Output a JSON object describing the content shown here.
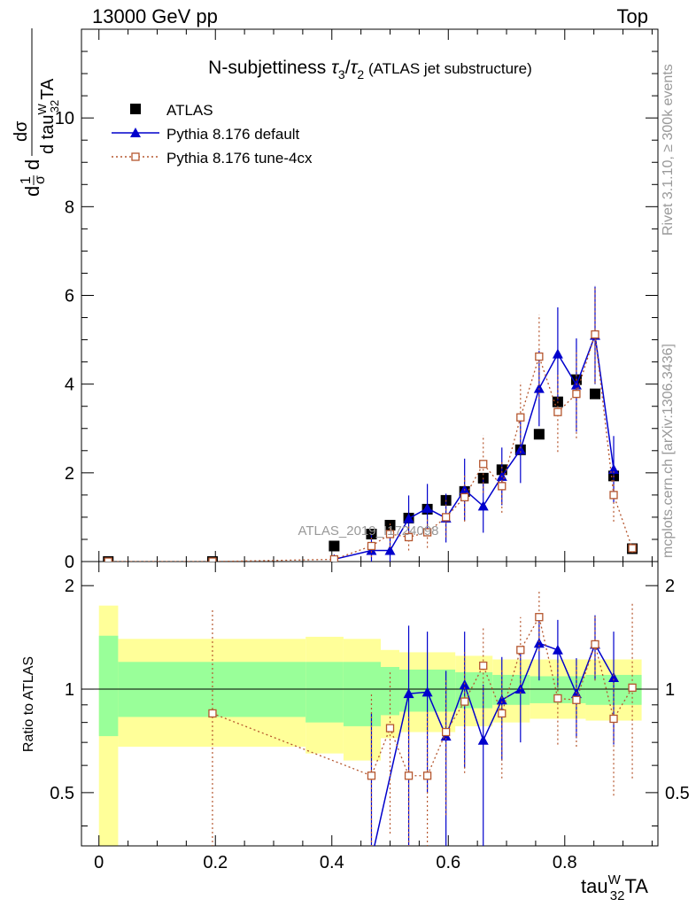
{
  "header": {
    "left": "13000 GeV pp",
    "right": "Top"
  },
  "side_labels": {
    "rivet": "Rivet 3.1.10, ≥ 300k events",
    "mcplots": "mcplots.cern.ch [arXiv:1306.3436]"
  },
  "watermark": "ATLAS_2019_I1724098",
  "chart_data": [
    {
      "type": "scatter",
      "panel": "main",
      "title_prefix": "N-subjettiness ",
      "title_math_a": "τ",
      "title_sub_a": "3",
      "title_slash": "/",
      "title_math_b": "τ",
      "title_sub_b": "2",
      "title_suffix": " (ATLAS jet substructure)",
      "ylabel_parts": [
        "d",
        "1",
        "σ",
        "d",
        "dσ",
        "d tau",
        "W",
        "32",
        "TA"
      ],
      "xlim": [
        -0.03,
        0.96
      ],
      "ylim": [
        0,
        12
      ],
      "yticks": [
        0,
        2,
        4,
        6,
        8,
        10
      ],
      "yticklabels": [
        "0",
        "2",
        "4",
        "6",
        "8",
        "10"
      ],
      "legend_placement": "top-left",
      "series": [
        {
          "name": "ATLAS",
          "color": "#000000",
          "marker": "square",
          "points": [
            {
              "x": 0.016,
              "y": 0.0
            },
            {
              "x": 0.195,
              "y": 0.0
            },
            {
              "x": 0.404,
              "y": 0.35
            },
            {
              "x": 0.468,
              "y": 0.62
            },
            {
              "x": 0.5,
              "y": 0.82
            },
            {
              "x": 0.532,
              "y": 0.98
            },
            {
              "x": 0.564,
              "y": 1.18
            },
            {
              "x": 0.596,
              "y": 1.38
            },
            {
              "x": 0.628,
              "y": 1.58
            },
            {
              "x": 0.66,
              "y": 1.88
            },
            {
              "x": 0.692,
              "y": 2.07
            },
            {
              "x": 0.724,
              "y": 2.52
            },
            {
              "x": 0.756,
              "y": 2.87
            },
            {
              "x": 0.788,
              "y": 3.6
            },
            {
              "x": 0.82,
              "y": 4.1
            },
            {
              "x": 0.852,
              "y": 3.78
            },
            {
              "x": 0.884,
              "y": 1.93
            },
            {
              "x": 0.916,
              "y": 0.29
            }
          ]
        },
        {
          "name": "Pythia 8.176 default",
          "color": "#0000cc",
          "marker": "triangle",
          "points": [
            {
              "x": 0.404,
              "y": 0.05,
              "err": 0.02
            },
            {
              "x": 0.468,
              "y": 0.25,
              "err": 0.35
            },
            {
              "x": 0.5,
              "y": 0.25,
              "err": 0.4
            },
            {
              "x": 0.532,
              "y": 0.97,
              "err": 0.52
            },
            {
              "x": 0.564,
              "y": 1.2,
              "err": 0.55
            },
            {
              "x": 0.596,
              "y": 0.98,
              "err": 0.55
            },
            {
              "x": 0.628,
              "y": 1.62,
              "err": 0.7
            },
            {
              "x": 0.66,
              "y": 1.25,
              "err": 0.6
            },
            {
              "x": 0.692,
              "y": 1.92,
              "err": 0.65
            },
            {
              "x": 0.724,
              "y": 2.52,
              "err": 0.75
            },
            {
              "x": 0.756,
              "y": 3.9,
              "err": 0.85
            },
            {
              "x": 0.788,
              "y": 4.68,
              "err": 1.05
            },
            {
              "x": 0.82,
              "y": 3.98,
              "err": 1.05
            },
            {
              "x": 0.852,
              "y": 5.1,
              "err": 1.1
            },
            {
              "x": 0.884,
              "y": 2.08,
              "err": 0.75
            }
          ]
        },
        {
          "name": "Pythia 8.176 tune-4cx",
          "color": "#b5562e",
          "marker": "open-square",
          "points": [
            {
              "x": 0.016,
              "y": 0.0,
              "err": 0.02
            },
            {
              "x": 0.195,
              "y": 0.0,
              "err": 0.02
            },
            {
              "x": 0.404,
              "y": 0.05,
              "err": 0.03
            },
            {
              "x": 0.468,
              "y": 0.35,
              "err": 0.25
            },
            {
              "x": 0.5,
              "y": 0.62,
              "err": 0.3
            },
            {
              "x": 0.532,
              "y": 0.55,
              "err": 0.3
            },
            {
              "x": 0.564,
              "y": 0.66,
              "err": 0.35
            },
            {
              "x": 0.596,
              "y": 1.0,
              "err": 0.45
            },
            {
              "x": 0.628,
              "y": 1.45,
              "err": 0.55
            },
            {
              "x": 0.66,
              "y": 2.2,
              "err": 0.65
            },
            {
              "x": 0.692,
              "y": 1.7,
              "err": 0.6
            },
            {
              "x": 0.724,
              "y": 3.25,
              "err": 0.8
            },
            {
              "x": 0.756,
              "y": 4.62,
              "err": 0.95
            },
            {
              "x": 0.788,
              "y": 3.37,
              "err": 0.9
            },
            {
              "x": 0.82,
              "y": 3.78,
              "err": 1.0
            },
            {
              "x": 0.852,
              "y": 5.12,
              "err": 1.1
            },
            {
              "x": 0.884,
              "y": 1.5,
              "err": 0.6
            },
            {
              "x": 0.916,
              "y": 0.3,
              "err": 0.1
            }
          ]
        }
      ]
    },
    {
      "type": "scatter",
      "panel": "ratio",
      "ylabel": "Ratio to ATLAS",
      "xlabel_main": "tau",
      "xlabel_sup": "W",
      "xlabel_sub": "32",
      "xlabel_tail": "TA",
      "xlim": [
        -0.03,
        0.96
      ],
      "ylim": [
        0.35,
        2.35
      ],
      "xticks": [
        0,
        0.2,
        0.4,
        0.6,
        0.8
      ],
      "xticklabels": [
        "0",
        "0.2",
        "0.4",
        "0.6",
        "0.8"
      ],
      "yticks": [
        0.5,
        1,
        2
      ],
      "yticklabels": [
        "0.5",
        "1",
        "2"
      ],
      "reference_line": 1,
      "bands": {
        "colors": {
          "outer": "#ffff99",
          "inner": "#99ff99"
        },
        "bins": [
          {
            "x0": 0.0,
            "x1": 0.033,
            "outer": [
              0.35,
              1.75
            ],
            "inner": [
              0.73,
              1.43
            ]
          },
          {
            "x0": 0.033,
            "x1": 0.355,
            "outer": [
              0.68,
              1.4
            ],
            "inner": [
              0.83,
              1.2
            ]
          },
          {
            "x0": 0.355,
            "x1": 0.42,
            "outer": [
              0.65,
              1.42
            ],
            "inner": [
              0.8,
              1.2
            ]
          },
          {
            "x0": 0.42,
            "x1": 0.484,
            "outer": [
              0.62,
              1.4
            ],
            "inner": [
              0.78,
              1.2
            ]
          },
          {
            "x0": 0.484,
            "x1": 0.516,
            "outer": [
              0.72,
              1.3
            ],
            "inner": [
              0.84,
              1.16
            ]
          },
          {
            "x0": 0.516,
            "x1": 0.612,
            "outer": [
              0.75,
              1.28
            ],
            "inner": [
              0.86,
              1.14
            ]
          },
          {
            "x0": 0.612,
            "x1": 0.676,
            "outer": [
              0.78,
              1.25
            ],
            "inner": [
              0.88,
              1.12
            ]
          },
          {
            "x0": 0.676,
            "x1": 0.74,
            "outer": [
              0.8,
              1.22
            ],
            "inner": [
              0.9,
              1.1
            ]
          },
          {
            "x0": 0.74,
            "x1": 0.836,
            "outer": [
              0.82,
              1.22
            ],
            "inner": [
              0.91,
              1.09
            ]
          },
          {
            "x0": 0.836,
            "x1": 0.932,
            "outer": [
              0.81,
              1.22
            ],
            "inner": [
              0.9,
              1.1
            ]
          }
        ]
      },
      "series": [
        {
          "name": "Pythia 8.176 default",
          "color": "#0000cc",
          "marker": "triangle",
          "points": [
            {
              "x": 0.468,
              "y": 0.32,
              "lo": 0.3,
              "hi": 0.85
            },
            {
              "x": 0.532,
              "y": 0.97,
              "lo": 0.35,
              "hi": 1.53
            },
            {
              "x": 0.564,
              "y": 0.98,
              "lo": 0.5,
              "hi": 1.47
            },
            {
              "x": 0.596,
              "y": 0.73,
              "lo": 0.33,
              "hi": 1.13
            },
            {
              "x": 0.628,
              "y": 1.03,
              "lo": 0.59,
              "hi": 1.47
            },
            {
              "x": 0.66,
              "y": 0.71,
              "lo": 0.35,
              "hi": 1.03
            },
            {
              "x": 0.692,
              "y": 0.93,
              "lo": 0.62,
              "hi": 1.24
            },
            {
              "x": 0.724,
              "y": 1.0,
              "lo": 0.7,
              "hi": 1.3
            },
            {
              "x": 0.756,
              "y": 1.36,
              "lo": 1.06,
              "hi": 1.66
            },
            {
              "x": 0.788,
              "y": 1.3,
              "lo": 1.01,
              "hi": 1.59
            },
            {
              "x": 0.82,
              "y": 0.97,
              "lo": 0.72,
              "hi": 1.23
            },
            {
              "x": 0.852,
              "y": 1.35,
              "lo": 1.06,
              "hi": 1.64
            },
            {
              "x": 0.884,
              "y": 1.08,
              "lo": 0.69,
              "hi": 1.47
            }
          ]
        },
        {
          "name": "Pythia 8.176 tune-4cx",
          "color": "#b5562e",
          "marker": "open-square",
          "points": [
            {
              "x": 0.195,
              "y": 0.85,
              "lo": 0.3,
              "hi": 1.7
            },
            {
              "x": 0.468,
              "y": 0.56,
              "lo": 0.3,
              "hi": 0.97
            },
            {
              "x": 0.5,
              "y": 0.77,
              "lo": 0.38,
              "hi": 1.12
            },
            {
              "x": 0.532,
              "y": 0.56,
              "lo": 0.3,
              "hi": 0.83
            },
            {
              "x": 0.564,
              "y": 0.56,
              "lo": 0.3,
              "hi": 0.86
            },
            {
              "x": 0.596,
              "y": 0.75,
              "lo": 0.43,
              "hi": 1.07
            },
            {
              "x": 0.628,
              "y": 0.92,
              "lo": 0.57,
              "hi": 1.28
            },
            {
              "x": 0.66,
              "y": 1.17,
              "lo": 0.82,
              "hi": 1.51
            },
            {
              "x": 0.692,
              "y": 0.85,
              "lo": 0.55,
              "hi": 1.15
            },
            {
              "x": 0.724,
              "y": 1.3,
              "lo": 0.97,
              "hi": 1.62
            },
            {
              "x": 0.756,
              "y": 1.62,
              "lo": 1.29,
              "hi": 1.94
            },
            {
              "x": 0.788,
              "y": 0.94,
              "lo": 0.69,
              "hi": 1.19
            },
            {
              "x": 0.82,
              "y": 0.93,
              "lo": 0.68,
              "hi": 1.17
            },
            {
              "x": 0.852,
              "y": 1.35,
              "lo": 1.06,
              "hi": 1.64
            },
            {
              "x": 0.884,
              "y": 0.82,
              "lo": 0.49,
              "hi": 1.12
            },
            {
              "x": 0.916,
              "y": 1.01,
              "lo": 0.55,
              "hi": 1.78
            }
          ]
        }
      ]
    }
  ]
}
